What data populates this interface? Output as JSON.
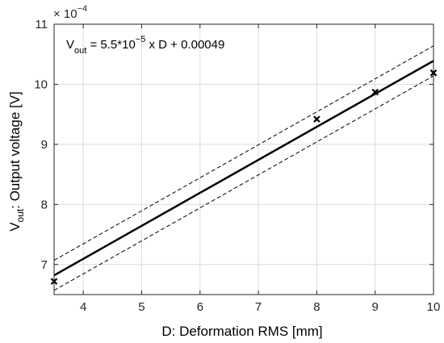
{
  "chart_data": {
    "type": "scatter",
    "xlabel": "D: Deformation RMS [mm]",
    "ylabel": {
      "main": "V",
      "sub": "out",
      "rest": ": Output voltage [V]"
    },
    "y_exponent": {
      "base": "× 10",
      "power": "−4"
    },
    "annotation": {
      "v": "V",
      "sub": "out",
      "part1": " = 5.5*10",
      "sup": "−5",
      "part2": " x D + 0.00049"
    },
    "xlim": [
      3.5,
      10
    ],
    "ylim": [
      6.5,
      11
    ],
    "x_ticks": [
      4,
      5,
      6,
      7,
      8,
      9,
      10
    ],
    "y_ticks": [
      7,
      8,
      9,
      10,
      11
    ],
    "y_tick_labels": [
      "7",
      "8",
      "9",
      "10",
      "11"
    ],
    "grid": true,
    "scale_note": "y values in units of 1e-4 V",
    "measurements": {
      "x": [
        3.5,
        8,
        9,
        10
      ],
      "y": [
        6.72,
        9.42,
        9.87,
        10.19
      ]
    },
    "fit": {
      "x": [
        3.5,
        10
      ],
      "y": [
        6.82,
        10.39
      ]
    },
    "bounds_upper": {
      "x": [
        3.5,
        10
      ],
      "y": [
        7.07,
        10.64
      ]
    },
    "bounds_lower": {
      "x": [
        3.5,
        10
      ],
      "y": [
        6.57,
        10.14
      ]
    },
    "colors": {
      "axis": "#262626",
      "grid": "#dcdcdc",
      "fit": "#000000",
      "bounds": "#000000",
      "marker": "#000000"
    }
  }
}
